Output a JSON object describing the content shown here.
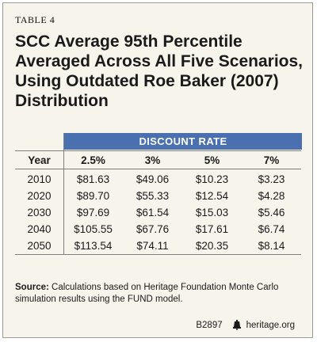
{
  "table_label": "TABLE 4",
  "title_lines": [
    "SCC Average 95th Percentile",
    "Averaged Across All Five Scenarios,",
    "Using Outdated Roe Baker (2007)",
    "Distribution"
  ],
  "discount_header": "DISCOUNT RATE",
  "columns": [
    "Year",
    "2.5%",
    "3%",
    "5%",
    "7%"
  ],
  "rows": [
    [
      "2010",
      "$81.63",
      "$49.06",
      "$10.23",
      "$3.23"
    ],
    [
      "2020",
      "$89.70",
      "$55.33",
      "$12.54",
      "$4.28"
    ],
    [
      "2030",
      "$97.69",
      "$61.54",
      "$15.03",
      "$5.46"
    ],
    [
      "2040",
      "$105.55",
      "$67.76",
      "$17.61",
      "$6.74"
    ],
    [
      "2050",
      "$113.54",
      "$74.11",
      "$20.35",
      "$8.14"
    ]
  ],
  "source_label": "Source:",
  "source_text": " Calculations based on Heritage Foundation Monte Carlo simulation results using the FUND model.",
  "footer_code": "B2897",
  "footer_site": "heritage.org",
  "colors": {
    "background": "#f7f4ec",
    "header_bar": "#4a70b0",
    "rules": "#7f7f7f"
  },
  "icons": {
    "footer": "liberty-bell-icon"
  }
}
